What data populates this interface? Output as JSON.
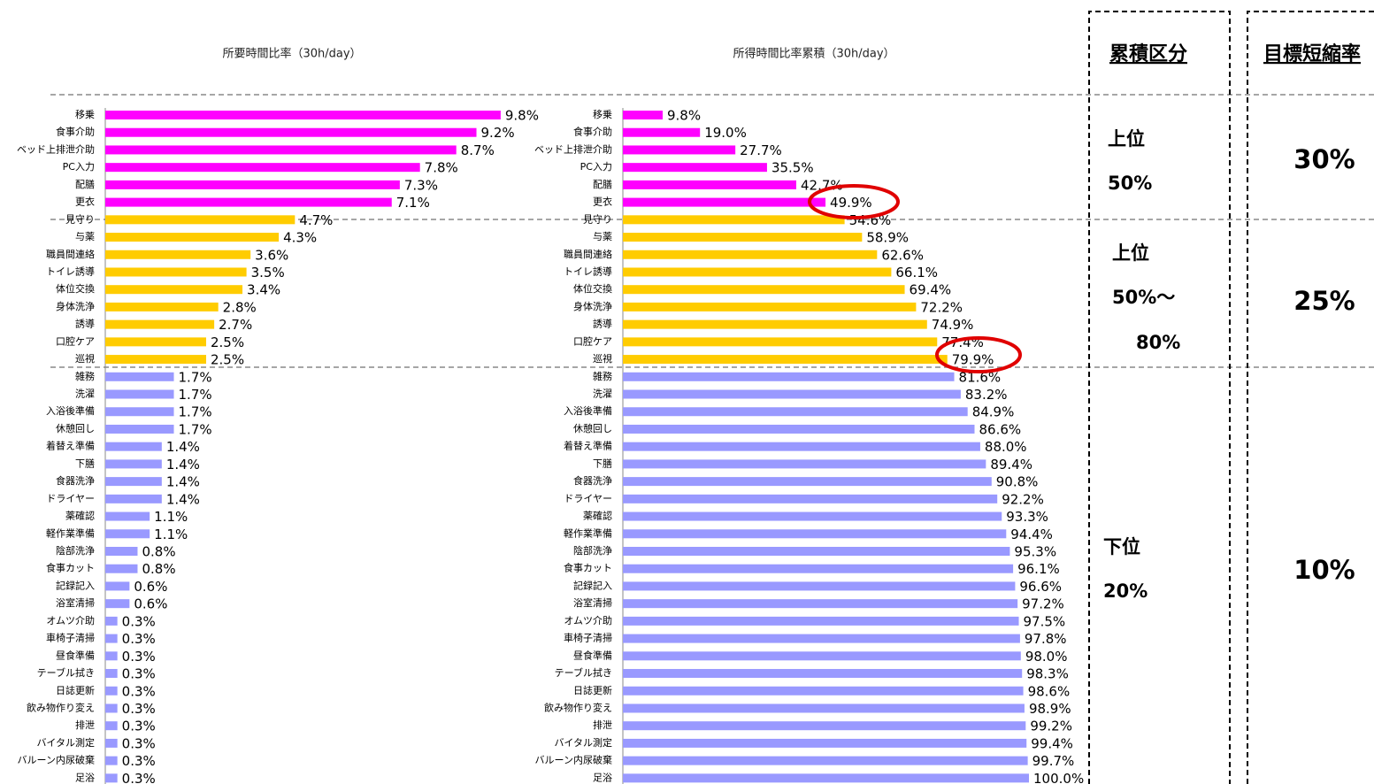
{
  "chart_data": [
    {
      "type": "bar",
      "orientation": "horizontal",
      "title": "所要時間比率（30h/day）",
      "categories": [
        "移乗",
        "食事介助",
        "ベッド上排泄介助",
        "PC入力",
        "配膳",
        "更衣",
        "見守り",
        "与薬",
        "職員間連絡",
        "トイレ誘導",
        "体位交換",
        "身体洗浄",
        "誘導",
        "口腔ケア",
        "巡視",
        "雑務",
        "洗濯",
        "入浴後準備",
        "休憩回し",
        "着替え準備",
        "下膳",
        "食器洗浄",
        "ドライヤー",
        "薬確認",
        "軽作業準備",
        "陰部洗浄",
        "食事カット",
        "記録記入",
        "浴室清掃",
        "オムツ介助",
        "車椅子清掃",
        "昼食準備",
        "テーブル拭き",
        "日誌更新",
        "飲み物作り変え",
        "排泄",
        "バイタル測定",
        "バルーン内尿破棄",
        "足浴"
      ],
      "values": [
        9.8,
        9.2,
        8.7,
        7.8,
        7.3,
        7.1,
        4.7,
        4.3,
        3.6,
        3.5,
        3.4,
        2.8,
        2.7,
        2.5,
        2.5,
        1.7,
        1.7,
        1.7,
        1.7,
        1.4,
        1.4,
        1.4,
        1.4,
        1.1,
        1.1,
        0.8,
        0.8,
        0.6,
        0.6,
        0.3,
        0.3,
        0.3,
        0.3,
        0.3,
        0.3,
        0.3,
        0.3,
        0.3,
        0.3
      ],
      "value_labels": [
        "9.8%",
        "9.2%",
        "8.7%",
        "7.8%",
        "7.3%",
        "7.1%",
        "4.7%",
        "4.3%",
        "3.6%",
        "3.5%",
        "3.4%",
        "2.8%",
        "2.7%",
        "2.5%",
        "2.5%",
        "1.7%",
        "1.7%",
        "1.7%",
        "1.7%",
        "1.4%",
        "1.4%",
        "1.4%",
        "1.4%",
        "1.1%",
        "1.1%",
        "0.8%",
        "0.8%",
        "0.6%",
        "0.6%",
        "0.3%",
        "0.3%",
        "0.3%",
        "0.3%",
        "0.3%",
        "0.3%",
        "0.3%",
        "0.3%",
        "0.3%",
        "0.3%"
      ],
      "colors": [
        "#ff00ff",
        "#ff00ff",
        "#ff00ff",
        "#ff00ff",
        "#ff00ff",
        "#ff00ff",
        "#ffcc00",
        "#ffcc00",
        "#ffcc00",
        "#ffcc00",
        "#ffcc00",
        "#ffcc00",
        "#ffcc00",
        "#ffcc00",
        "#ffcc00",
        "#9999ff",
        "#9999ff",
        "#9999ff",
        "#9999ff",
        "#9999ff",
        "#9999ff",
        "#9999ff",
        "#9999ff",
        "#9999ff",
        "#9999ff",
        "#9999ff",
        "#9999ff",
        "#9999ff",
        "#9999ff",
        "#9999ff",
        "#9999ff",
        "#9999ff",
        "#9999ff",
        "#9999ff",
        "#9999ff",
        "#9999ff",
        "#9999ff",
        "#9999ff",
        "#9999ff"
      ],
      "xlim": [
        0,
        10
      ]
    },
    {
      "type": "bar",
      "orientation": "horizontal",
      "title": "所得時間比率累積（30h/day）",
      "categories": [
        "移乗",
        "食事介助",
        "ベッド上排泄介助",
        "PC入力",
        "配膳",
        "更衣",
        "見守り",
        "与薬",
        "職員間連絡",
        "トイレ誘導",
        "体位交換",
        "身体洗浄",
        "誘導",
        "口腔ケア",
        "巡視",
        "雑務",
        "洗濯",
        "入浴後準備",
        "休憩回し",
        "着替え準備",
        "下膳",
        "食器洗浄",
        "ドライヤー",
        "薬確認",
        "軽作業準備",
        "陰部洗浄",
        "食事カット",
        "記録記入",
        "浴室清掃",
        "オムツ介助",
        "車椅子清掃",
        "昼食準備",
        "テーブル拭き",
        "日誌更新",
        "飲み物作り変え",
        "排泄",
        "バイタル測定",
        "バルーン内尿破棄",
        "足浴"
      ],
      "values": [
        9.8,
        19.0,
        27.7,
        35.5,
        42.7,
        49.9,
        54.6,
        58.9,
        62.6,
        66.1,
        69.4,
        72.2,
        74.9,
        77.4,
        79.9,
        81.6,
        83.2,
        84.9,
        86.6,
        88.0,
        89.4,
        90.8,
        92.2,
        93.3,
        94.4,
        95.3,
        96.1,
        96.6,
        97.2,
        97.5,
        97.8,
        98.0,
        98.3,
        98.6,
        98.9,
        99.2,
        99.4,
        99.7,
        100.0
      ],
      "value_labels": [
        "9.8%",
        "19.0%",
        "27.7%",
        "35.5%",
        "42.7%",
        "49.9%",
        "54.6%",
        "58.9%",
        "62.6%",
        "66.1%",
        "69.4%",
        "72.2%",
        "74.9%",
        "77.4%",
        "79.9%",
        "81.6%",
        "83.2%",
        "84.9%",
        "86.6%",
        "88.0%",
        "89.4%",
        "90.8%",
        "92.2%",
        "93.3%",
        "94.4%",
        "95.3%",
        "96.1%",
        "96.6%",
        "97.2%",
        "97.5%",
        "97.8%",
        "98.0%",
        "98.3%",
        "98.6%",
        "98.9%",
        "99.2%",
        "99.4%",
        "99.7%",
        "100.0%"
      ],
      "colors": [
        "#ff00ff",
        "#ff00ff",
        "#ff00ff",
        "#ff00ff",
        "#ff00ff",
        "#ff00ff",
        "#ffcc00",
        "#ffcc00",
        "#ffcc00",
        "#ffcc00",
        "#ffcc00",
        "#ffcc00",
        "#ffcc00",
        "#ffcc00",
        "#ffcc00",
        "#9999ff",
        "#9999ff",
        "#9999ff",
        "#9999ff",
        "#9999ff",
        "#9999ff",
        "#9999ff",
        "#9999ff",
        "#9999ff",
        "#9999ff",
        "#9999ff",
        "#9999ff",
        "#9999ff",
        "#9999ff",
        "#9999ff",
        "#9999ff",
        "#9999ff",
        "#9999ff",
        "#9999ff",
        "#9999ff",
        "#9999ff",
        "#9999ff",
        "#9999ff",
        "#9999ff"
      ],
      "xlim": [
        0,
        100
      ]
    }
  ],
  "segments": {
    "headers": [
      "累積区分",
      "目標短縮率"
    ],
    "rows": [
      {
        "label": [
          "上位",
          "50%"
        ],
        "target": "30%"
      },
      {
        "label": [
          "上位",
          "50%〜",
          "80%"
        ],
        "target": "25%"
      },
      {
        "label": [
          "下位",
          "20%"
        ],
        "target": "10%"
      }
    ]
  }
}
